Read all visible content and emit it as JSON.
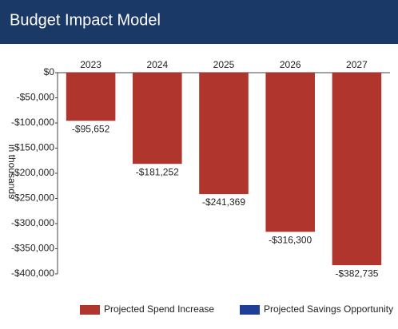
{
  "chart_data": {
    "type": "bar",
    "title": "Budget Impact Model",
    "y_label": "in thousands",
    "categories": [
      "2023",
      "2024",
      "2025",
      "2026",
      "2027"
    ],
    "series": [
      {
        "name": "Projected Spend Increase",
        "color": "#b0352c",
        "values": [
          -95652,
          -181252,
          -241369,
          -316300,
          -382735
        ],
        "value_labels": [
          "-$95,652",
          "-$181,252",
          "-$241,369",
          "-$316,300",
          "-$382,735"
        ]
      },
      {
        "name": "Projected Savings Opportunity",
        "color": "#1f3f96",
        "values": [
          null,
          null,
          null,
          null,
          null
        ]
      }
    ],
    "ylim": [
      -400000,
      0
    ],
    "yticks": [
      {
        "value": 0,
        "label": "$0"
      },
      {
        "value": -50000,
        "label": "-$50,000"
      },
      {
        "value": -100000,
        "label": "-$100,000"
      },
      {
        "value": -150000,
        "label": "-$150,000"
      },
      {
        "value": -200000,
        "label": "-$200,000"
      },
      {
        "value": -250000,
        "label": "-$250,000"
      },
      {
        "value": -300000,
        "label": "-$300,000"
      },
      {
        "value": -350000,
        "label": "-$350,000"
      },
      {
        "value": -400000,
        "label": "-$400,000"
      }
    ],
    "grid": false
  }
}
